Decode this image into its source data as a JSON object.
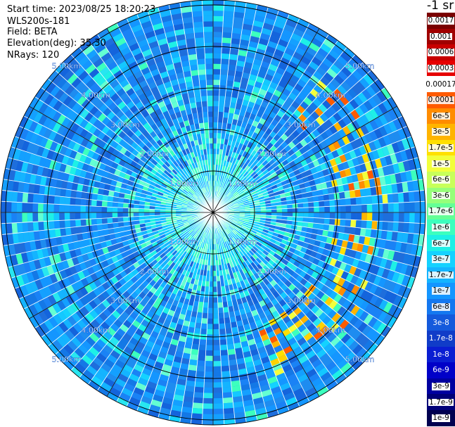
{
  "info": {
    "start_time": "Start time: 2023/08/25 18:20:23",
    "instrument": "WLS200s-181",
    "field": "Field: BETA",
    "elevation": "Elevation(deg): 35.30",
    "nrays": "NRays: 120"
  },
  "map": {
    "n_rays": 120,
    "range_rings": [
      {
        "label": "1.00km"
      },
      {
        "label": "2.00km"
      },
      {
        "label": "3.00km"
      },
      {
        "label": "4.00km"
      },
      {
        "label": "5.00km"
      }
    ],
    "background_color": "#1a8cf0",
    "ring_color": "#000000",
    "ray_gap_color": "#ffffff"
  },
  "colorbar": {
    "title": "-1 sr",
    "levels": [
      {
        "label": "0.0017",
        "color": "#7a0000"
      },
      {
        "label": "0.001",
        "color": "#a00000"
      },
      {
        "label": "0.0006",
        "color": "#c80000"
      },
      {
        "label": "0.0003",
        "color": "#e60000"
      },
      {
        "label": "0.00017",
        "color": "#ffffff"
      },
      {
        "label": "0.0001",
        "color": "#ff5a00"
      },
      {
        "label": "6e-5",
        "color": "#ff8c00"
      },
      {
        "label": "3e-5",
        "color": "#ffb400"
      },
      {
        "label": "1.7e-5",
        "color": "#ffe000"
      },
      {
        "label": "1e-5",
        "color": "#f2ff3c"
      },
      {
        "label": "6e-6",
        "color": "#c8ff5a"
      },
      {
        "label": "3e-6",
        "color": "#96ff7a"
      },
      {
        "label": "1.7e-6",
        "color": "#64ff96"
      },
      {
        "label": "1e-6",
        "color": "#3cffbe"
      },
      {
        "label": "6e-7",
        "color": "#1ef0e6"
      },
      {
        "label": "3e-7",
        "color": "#14d2ff"
      },
      {
        "label": "1.7e-7",
        "color": "#14b4ff"
      },
      {
        "label": "1e-7",
        "color": "#1496ff"
      },
      {
        "label": "6e-8",
        "color": "#1478f0"
      },
      {
        "label": "3e-8",
        "color": "#145adc"
      },
      {
        "label": "1.7e-8",
        "color": "#103cc8"
      },
      {
        "label": "1e-8",
        "color": "#0a1ed2"
      },
      {
        "label": "6e-9",
        "color": "#0000c8"
      },
      {
        "label": "3e-9",
        "color": "#0000a0"
      },
      {
        "label": "1.7e-9",
        "color": "#000078"
      },
      {
        "label": "1e-9",
        "color": "#000050"
      }
    ]
  }
}
